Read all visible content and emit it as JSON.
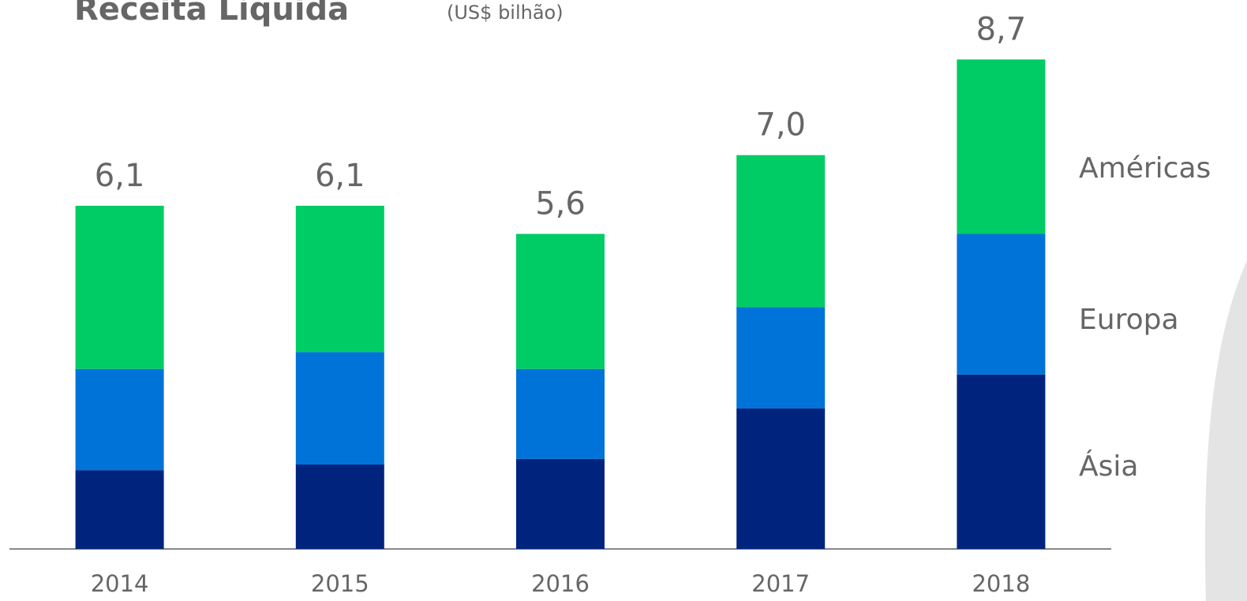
{
  "chart_data": {
    "type": "stacked_bar",
    "title": "Receita Líquida",
    "subtitle": "(US$ bilhão)",
    "categories": [
      "2014",
      "2015",
      "2016",
      "2017",
      "2018"
    ],
    "series": [
      {
        "name": "Ásia",
        "color": "#00247d",
        "values": [
          1.4,
          1.5,
          1.6,
          2.5,
          3.1
        ]
      },
      {
        "name": "Europa",
        "color": "#0073d9",
        "values": [
          1.8,
          2.0,
          1.6,
          1.8,
          2.5
        ]
      },
      {
        "name": "Américas",
        "color": "#00cc66",
        "values": [
          2.9,
          2.6,
          2.4,
          2.7,
          3.1
        ]
      }
    ],
    "totals": [
      6.1,
      6.1,
      5.6,
      7.0,
      8.7
    ],
    "total_labels": [
      "6,1",
      "6,1",
      "5,6",
      "7,0",
      "8,7"
    ],
    "ylim": [
      0,
      9
    ]
  }
}
